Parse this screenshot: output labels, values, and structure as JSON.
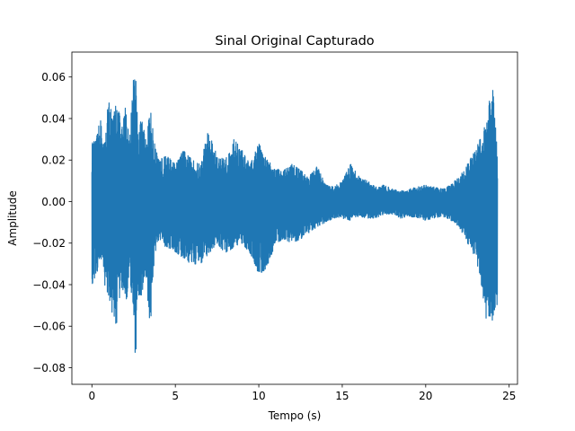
{
  "chart_data": {
    "type": "line",
    "title": "Sinal Original Capturado",
    "xlabel": "Tempo (s)",
    "ylabel": "Amplitude",
    "xlim": [
      -1.2,
      25.5
    ],
    "ylim": [
      -0.088,
      0.072
    ],
    "xticks": [
      0,
      5,
      10,
      15,
      20,
      25
    ],
    "yticks": [
      -0.08,
      -0.06,
      -0.04,
      -0.02,
      0.0,
      0.02,
      0.04,
      0.06
    ],
    "xtick_labels": [
      "0",
      "5",
      "10",
      "15",
      "20",
      "25"
    ],
    "ytick_labels": [
      "−0.08",
      "−0.06",
      "−0.04",
      "−0.02",
      "0.00",
      "0.02",
      "0.04",
      "0.06"
    ],
    "grid": false,
    "legend": "none",
    "series_color": "#1f77b4",
    "series": [
      {
        "x": [
          0,
          0.25,
          0.5,
          0.75,
          1.0,
          1.25,
          1.5,
          1.75,
          2.0,
          2.25,
          2.5,
          2.6,
          2.75,
          3.0,
          3.25,
          3.5,
          3.75,
          4.0,
          4.5,
          5.0,
          5.5,
          6.0,
          6.5,
          7.0,
          7.5,
          8.0,
          8.5,
          9.0,
          9.5,
          10.0,
          10.5,
          11.0,
          11.5,
          12.0,
          12.5,
          13.0,
          13.5,
          14.0,
          14.5,
          15.0,
          15.5,
          16.0,
          16.5,
          17.0,
          17.5,
          18.0,
          18.5,
          19.0,
          19.5,
          20.0,
          20.5,
          21.0,
          21.5,
          22.0,
          22.5,
          23.0,
          23.25,
          23.5,
          23.75,
          24.0,
          24.3
        ],
        "upper": [
          0.028,
          0.03,
          0.04,
          0.028,
          0.05,
          0.04,
          0.053,
          0.035,
          0.045,
          0.03,
          0.06,
          0.065,
          0.035,
          0.04,
          0.03,
          0.045,
          0.028,
          0.02,
          0.022,
          0.018,
          0.025,
          0.02,
          0.018,
          0.035,
          0.022,
          0.02,
          0.03,
          0.025,
          0.018,
          0.028,
          0.02,
          0.016,
          0.015,
          0.018,
          0.015,
          0.012,
          0.017,
          0.008,
          0.007,
          0.01,
          0.018,
          0.012,
          0.01,
          0.007,
          0.008,
          0.006,
          0.005,
          0.006,
          0.007,
          0.008,
          0.007,
          0.006,
          0.008,
          0.012,
          0.018,
          0.025,
          0.03,
          0.035,
          0.045,
          0.058,
          0.022
        ],
        "lower": [
          -0.04,
          -0.035,
          -0.03,
          -0.04,
          -0.045,
          -0.055,
          -0.06,
          -0.04,
          -0.05,
          -0.04,
          -0.05,
          -0.082,
          -0.045,
          -0.045,
          -0.035,
          -0.065,
          -0.025,
          -0.02,
          -0.022,
          -0.025,
          -0.028,
          -0.03,
          -0.03,
          -0.025,
          -0.02,
          -0.025,
          -0.022,
          -0.02,
          -0.025,
          -0.035,
          -0.032,
          -0.02,
          -0.018,
          -0.02,
          -0.018,
          -0.015,
          -0.012,
          -0.01,
          -0.008,
          -0.008,
          -0.009,
          -0.007,
          -0.008,
          -0.008,
          -0.006,
          -0.006,
          -0.008,
          -0.007,
          -0.008,
          -0.009,
          -0.008,
          -0.007,
          -0.009,
          -0.012,
          -0.02,
          -0.028,
          -0.035,
          -0.05,
          -0.063,
          -0.06,
          -0.05
        ]
      }
    ]
  }
}
